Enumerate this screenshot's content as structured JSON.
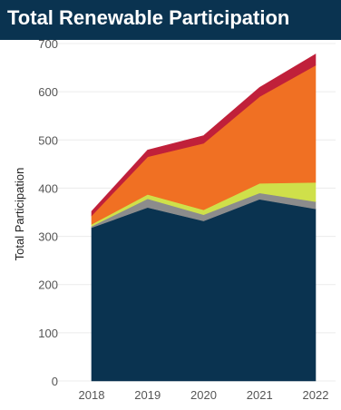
{
  "title": "Total Renewable Participation",
  "chart_data": {
    "type": "area",
    "stacked": true,
    "title": "Total Renewable Participation",
    "xlabel": "",
    "ylabel": "Total Participation",
    "x": [
      "2018",
      "2019",
      "2020",
      "2021",
      "2022"
    ],
    "ylim": [
      0,
      700
    ],
    "yticks": [
      0,
      100,
      200,
      300,
      400,
      500,
      600,
      700
    ],
    "grid": true,
    "legend": "none",
    "series": [
      {
        "color": "#0a3350",
        "values": [
          318,
          360,
          332,
          377,
          357
        ]
      },
      {
        "color": "#8c8c8c",
        "values": [
          3,
          18,
          13,
          13,
          15
        ]
      },
      {
        "color": "#cfe04a",
        "values": [
          4,
          9,
          10,
          20,
          40
        ]
      },
      {
        "color": "#f07023",
        "values": [
          18,
          78,
          138,
          180,
          243
        ]
      },
      {
        "color": "#c0203a",
        "values": [
          9,
          14,
          16,
          19,
          23
        ]
      }
    ]
  }
}
